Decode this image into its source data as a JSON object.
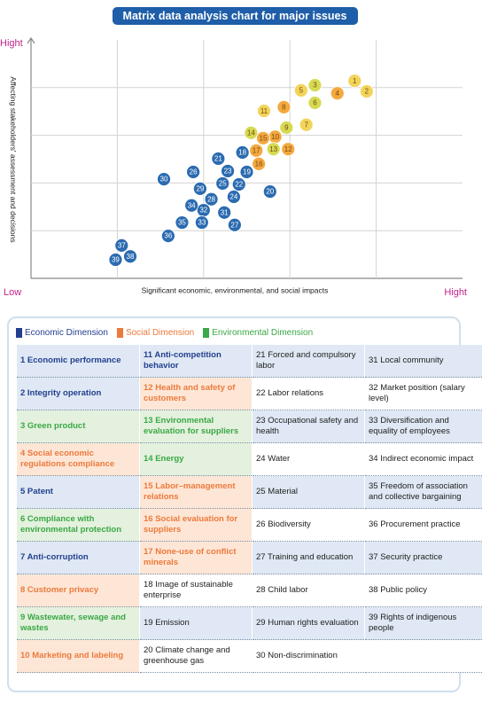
{
  "chart_data": {
    "type": "scatter",
    "title": "Matrix data analysis chart for major issues",
    "x_label": "Significant economic, environmental, and social impacts",
    "y_label": "Affecting stakeholders' assessment and decisions",
    "y_high": "Hight",
    "x_low": "Low",
    "x_high": "Hight",
    "xlim": [
      0,
      5
    ],
    "ylim": [
      0,
      5
    ],
    "xgrid": [
      1,
      2,
      3,
      4
    ],
    "ygrid": [
      1,
      2,
      3,
      4
    ],
    "points": [
      {
        "label": "1",
        "x": 3.75,
        "y": 4.14,
        "color": "#f2d45a"
      },
      {
        "label": "2",
        "x": 3.89,
        "y": 3.92,
        "color": "#f2d45a"
      },
      {
        "label": "3",
        "x": 3.29,
        "y": 4.05,
        "color": "#d6da52"
      },
      {
        "label": "4",
        "x": 3.55,
        "y": 3.88,
        "color": "#f4a93f"
      },
      {
        "label": "5",
        "x": 3.13,
        "y": 3.94,
        "color": "#f2d45a"
      },
      {
        "label": "6",
        "x": 3.29,
        "y": 3.68,
        "color": "#d6da52"
      },
      {
        "label": "7",
        "x": 3.19,
        "y": 3.22,
        "color": "#f2d45a"
      },
      {
        "label": "8",
        "x": 2.93,
        "y": 3.59,
        "color": "#f4a93f"
      },
      {
        "label": "9",
        "x": 2.96,
        "y": 3.16,
        "color": "#d6da52"
      },
      {
        "label": "10",
        "x": 2.83,
        "y": 2.97,
        "color": "#f4a93f"
      },
      {
        "label": "11",
        "x": 2.7,
        "y": 3.51,
        "color": "#f2d45a"
      },
      {
        "label": "12",
        "x": 2.98,
        "y": 2.71,
        "color": "#f4a93f"
      },
      {
        "label": "13",
        "x": 2.81,
        "y": 2.71,
        "color": "#d6da52"
      },
      {
        "label": "14",
        "x": 2.55,
        "y": 3.05,
        "color": "#d6da52"
      },
      {
        "label": "15",
        "x": 2.69,
        "y": 2.94,
        "color": "#f4a93f"
      },
      {
        "label": "16",
        "x": 2.64,
        "y": 2.4,
        "color": "#f4a93f"
      },
      {
        "label": "17",
        "x": 2.61,
        "y": 2.68,
        "color": "#f4a93f"
      },
      {
        "label": "18",
        "x": 2.45,
        "y": 2.64,
        "color": "#2b6bb0"
      },
      {
        "label": "19",
        "x": 2.5,
        "y": 2.23,
        "color": "#2b6bb0"
      },
      {
        "label": "20",
        "x": 2.77,
        "y": 1.82,
        "color": "#2b6bb0"
      },
      {
        "label": "21",
        "x": 2.17,
        "y": 2.51,
        "color": "#2b6bb0"
      },
      {
        "label": "22",
        "x": 2.41,
        "y": 1.97,
        "color": "#2b6bb0"
      },
      {
        "label": "23",
        "x": 2.28,
        "y": 2.25,
        "color": "#2b6bb0"
      },
      {
        "label": "24",
        "x": 2.35,
        "y": 1.71,
        "color": "#2b6bb0"
      },
      {
        "label": "25",
        "x": 2.22,
        "y": 1.99,
        "color": "#2b6bb0"
      },
      {
        "label": "26",
        "x": 1.88,
        "y": 2.23,
        "color": "#2b6bb0"
      },
      {
        "label": "27",
        "x": 2.36,
        "y": 1.12,
        "color": "#2b6bb0"
      },
      {
        "label": "28",
        "x": 2.09,
        "y": 1.66,
        "color": "#2b6bb0"
      },
      {
        "label": "29",
        "x": 1.96,
        "y": 1.88,
        "color": "#2b6bb0"
      },
      {
        "label": "30",
        "x": 1.54,
        "y": 2.08,
        "color": "#2b6bb0"
      },
      {
        "label": "31",
        "x": 2.24,
        "y": 1.38,
        "color": "#2b6bb0"
      },
      {
        "label": "32",
        "x": 2.0,
        "y": 1.43,
        "color": "#2b6bb0"
      },
      {
        "label": "33",
        "x": 1.98,
        "y": 1.17,
        "color": "#2b6bb0"
      },
      {
        "label": "34",
        "x": 1.86,
        "y": 1.53,
        "color": "#2b6bb0"
      },
      {
        "label": "35",
        "x": 1.75,
        "y": 1.17,
        "color": "#2b6bb0"
      },
      {
        "label": "36",
        "x": 1.59,
        "y": 0.89,
        "color": "#2b6bb0"
      },
      {
        "label": "37",
        "x": 1.05,
        "y": 0.69,
        "color": "#2b6bb0"
      },
      {
        "label": "38",
        "x": 1.15,
        "y": 0.46,
        "color": "#2b6bb0"
      },
      {
        "label": "39",
        "x": 0.98,
        "y": 0.39,
        "color": "#2b6bb0"
      }
    ]
  },
  "legend": [
    {
      "label": "Economic Dimension",
      "color": "#233f8f"
    },
    {
      "label": "Social Dimension",
      "color": "#ec7a3c"
    },
    {
      "label": "Environmental Dimension",
      "color": "#3aa845"
    }
  ],
  "table": {
    "rows": [
      [
        {
          "text": "1 Economic performance",
          "color": "#233f8f"
        },
        {
          "text": "11 Anti-competition behavior",
          "color": "#233f8f"
        },
        "21 Forced and compulsory labor",
        "31 Local community"
      ],
      [
        {
          "text": "2 Integrity operation",
          "color": "#233f8f"
        },
        {
          "text": "12 Health and safety of customers",
          "color": "#ec7a3c"
        },
        "22 Labor relations",
        "32 Market position (salary level)"
      ],
      [
        {
          "text": "3 Green product",
          "color": "#3aa845"
        },
        {
          "text": "13 Environmental evaluation for suppliers",
          "color": "#3aa845"
        },
        "23 Occupational safety and health",
        "33 Diversification and equality of employees"
      ],
      [
        {
          "text": "4 Social economic regulations compliance",
          "color": "#ec7a3c"
        },
        {
          "text": "14 Energy",
          "color": "#3aa845"
        },
        "24 Water",
        "34 Indirect economic impact"
      ],
      [
        {
          "text": "5 Patent",
          "color": "#233f8f"
        },
        {
          "text": "15 Labor–management relations",
          "color": "#ec7a3c"
        },
        "25 Material",
        "35 Freedom of association and collective bargaining"
      ],
      [
        {
          "text": "6 Compliance with environmental protection",
          "color": "#3aa845"
        },
        {
          "text": "16 Social evaluation for suppliers",
          "color": "#ec7a3c"
        },
        "26 Biodiversity",
        "36 Procurement practice"
      ],
      [
        {
          "text": "7 Anti-corruption",
          "color": "#233f8f"
        },
        {
          "text": "17 None-use of conflict minerals",
          "color": "#ec7a3c"
        },
        "27 Training and education",
        "37 Security practice"
      ],
      [
        {
          "text": "8 Customer privacy",
          "color": "#ec7a3c"
        },
        "18 Image of sustainable enterprise",
        "28 Child labor",
        "38 Public policy"
      ],
      [
        {
          "text": "9 Wastewater, sewage and wastes",
          "color": "#3aa845"
        },
        "19 Emission",
        "29 Human rights evaluation",
        "39 Rights of indigenous people"
      ],
      [
        {
          "text": "10 Marketing and labeling",
          "color": "#ec7a3c"
        },
        "20 Climate change and greenhouse gas",
        "30 Non-discrimination",
        null
      ]
    ]
  }
}
